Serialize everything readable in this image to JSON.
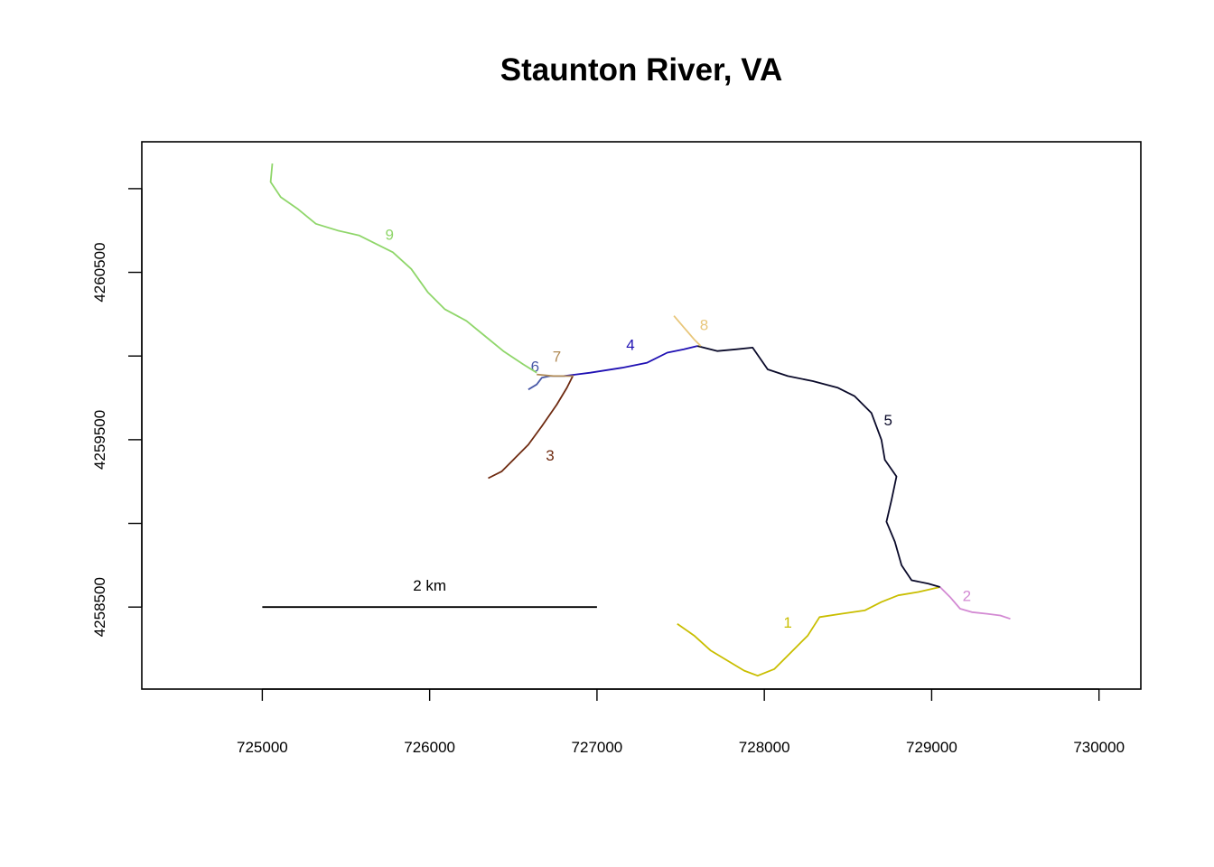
{
  "title": "Staunton River, VA",
  "scale_bar": {
    "label": "2 km",
    "length_m": 2000,
    "start_x": 725000,
    "y": 4258500
  },
  "chart_data": {
    "type": "line",
    "title": "Staunton River, VA",
    "xlabel": "",
    "ylabel": "",
    "xlim": [
      724280,
      730250
    ],
    "ylim": [
      4258010,
      4261280
    ],
    "x_ticks": [
      725000,
      726000,
      727000,
      728000,
      729000,
      730000
    ],
    "x_tick_labels": [
      "725000",
      "726000",
      "727000",
      "728000",
      "729000",
      "730000"
    ],
    "y_ticks": [
      4258500,
      4259000,
      4259500,
      4260000,
      4260500,
      4261000
    ],
    "y_tick_labels": [
      "4258500",
      "",
      "4259500",
      "",
      "4260500",
      ""
    ],
    "grid": false,
    "legend": "none",
    "series": [
      {
        "name": "1",
        "color": "#c9be00",
        "label_at": [
          728140,
          4258400
        ],
        "points": [
          [
            727480,
            4258400
          ],
          [
            727580,
            4258330
          ],
          [
            727680,
            4258240
          ],
          [
            727780,
            4258180
          ],
          [
            727880,
            4258120
          ],
          [
            727960,
            4258090
          ],
          [
            728060,
            4258130
          ],
          [
            728160,
            4258230
          ],
          [
            728260,
            4258330
          ],
          [
            728330,
            4258440
          ],
          [
            728460,
            4258460
          ],
          [
            728600,
            4258480
          ],
          [
            728700,
            4258530
          ],
          [
            728800,
            4258570
          ],
          [
            728920,
            4258590
          ],
          [
            729050,
            4258620
          ]
        ]
      },
      {
        "name": "2",
        "color": "#d38ad3",
        "label_at": [
          729210,
          4258560
        ],
        "points": [
          [
            729050,
            4258620
          ],
          [
            729110,
            4258560
          ],
          [
            729170,
            4258490
          ],
          [
            729240,
            4258470
          ],
          [
            729330,
            4258460
          ],
          [
            729410,
            4258450
          ],
          [
            729470,
            4258430
          ]
        ]
      },
      {
        "name": "3",
        "color": "#6e2a10",
        "label_at": [
          726720,
          4259400
        ],
        "points": [
          [
            726350,
            4259270
          ],
          [
            726430,
            4259310
          ],
          [
            726510,
            4259390
          ],
          [
            726590,
            4259470
          ],
          [
            726670,
            4259580
          ],
          [
            726760,
            4259710
          ],
          [
            726820,
            4259810
          ],
          [
            726860,
            4259890
          ]
        ]
      },
      {
        "name": "4",
        "color": "#1f10b3",
        "label_at": [
          727200,
          4260060
        ],
        "points": [
          [
            726800,
            4259880
          ],
          [
            726960,
            4259900
          ],
          [
            727150,
            4259930
          ],
          [
            727300,
            4259960
          ],
          [
            727420,
            4260020
          ],
          [
            727520,
            4260040
          ],
          [
            727600,
            4260060
          ]
        ]
      },
      {
        "name": "5",
        "color": "#0a0a2a",
        "label_at": [
          728740,
          4259610
        ],
        "points": [
          [
            727600,
            4260060
          ],
          [
            727720,
            4260030
          ],
          [
            727830,
            4260040
          ],
          [
            727930,
            4260050
          ],
          [
            728020,
            4259920
          ],
          [
            728140,
            4259880
          ],
          [
            728290,
            4259850
          ],
          [
            728440,
            4259810
          ],
          [
            728540,
            4259760
          ],
          [
            728640,
            4259660
          ],
          [
            728700,
            4259500
          ],
          [
            728720,
            4259380
          ],
          [
            728790,
            4259280
          ],
          [
            728760,
            4259140
          ],
          [
            728730,
            4259010
          ],
          [
            728780,
            4258890
          ],
          [
            728820,
            4258750
          ],
          [
            728880,
            4258660
          ],
          [
            728980,
            4258640
          ],
          [
            729050,
            4258620
          ]
        ]
      },
      {
        "name": "6",
        "color": "#4a5aa8",
        "label_at": [
          726630,
          4259930
        ],
        "points": [
          [
            726590,
            4259800
          ],
          [
            726640,
            4259830
          ],
          [
            726670,
            4259870
          ],
          [
            726720,
            4259880
          ],
          [
            726800,
            4259880
          ]
        ]
      },
      {
        "name": "7",
        "color": "#b08a55",
        "label_at": [
          726760,
          4259990
        ],
        "points": [
          [
            726640,
            4259890
          ],
          [
            726740,
            4259880
          ],
          [
            726800,
            4259880
          ],
          [
            726860,
            4259880
          ]
        ]
      },
      {
        "name": "8",
        "color": "#e8c67a",
        "label_at": [
          727640,
          4260180
        ],
        "points": [
          [
            727460,
            4260240
          ],
          [
            727520,
            4260170
          ],
          [
            727580,
            4260100
          ],
          [
            727620,
            4260060
          ]
        ]
      },
      {
        "name": "9",
        "color": "#8fd66a",
        "label_at": [
          725760,
          4260720
        ],
        "points": [
          [
            725060,
            4261150
          ],
          [
            725050,
            4261040
          ],
          [
            725110,
            4260950
          ],
          [
            725210,
            4260880
          ],
          [
            725320,
            4260790
          ],
          [
            725450,
            4260750
          ],
          [
            725580,
            4260720
          ],
          [
            725700,
            4260660
          ],
          [
            725780,
            4260620
          ],
          [
            725890,
            4260520
          ],
          [
            725990,
            4260380
          ],
          [
            726090,
            4260280
          ],
          [
            726220,
            4260210
          ],
          [
            726330,
            4260120
          ],
          [
            726440,
            4260030
          ],
          [
            726560,
            4259950
          ],
          [
            726640,
            4259900
          ]
        ]
      }
    ]
  }
}
